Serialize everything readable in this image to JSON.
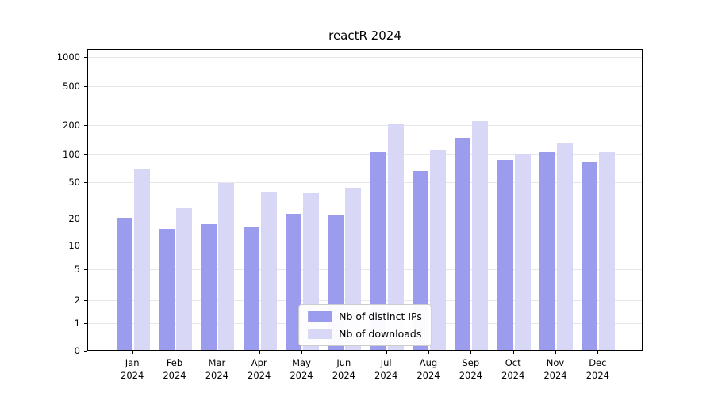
{
  "chart_data": {
    "type": "bar",
    "title": "reactR 2024",
    "categories": [
      "Jan 2024",
      "Feb 2024",
      "Mar 2024",
      "Apr 2024",
      "May 2024",
      "Jun 2024",
      "Jul 2024",
      "Aug 2024",
      "Sep 2024",
      "Oct 2024",
      "Nov 2024",
      "Dec 2024"
    ],
    "series": [
      {
        "name": "Nb of distinct IPs",
        "color": "#9c9cee",
        "values": [
          20,
          15,
          17,
          16,
          22,
          21,
          105,
          65,
          145,
          85,
          105,
          80
        ]
      },
      {
        "name": "Nb of downloads",
        "color": "#d8d8f6",
        "values": [
          68,
          25,
          48,
          38,
          37,
          42,
          200,
          110,
          215,
          100,
          130,
          105
        ]
      }
    ],
    "yticks": [
      0,
      1,
      2,
      5,
      10,
      20,
      50,
      100,
      200,
      500,
      1000
    ],
    "ylim": [
      0,
      1300
    ],
    "yscale": "log-like",
    "xlabel": "",
    "ylabel": "",
    "grid": true,
    "legend_position": "lower center"
  }
}
